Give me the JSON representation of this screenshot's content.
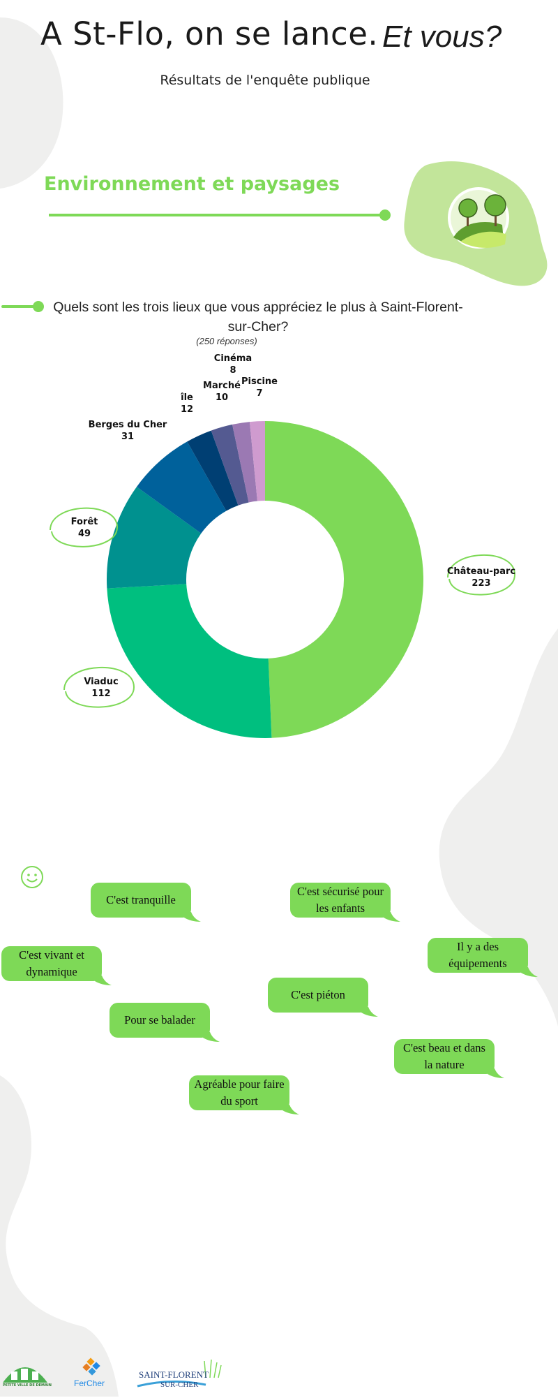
{
  "header": {
    "title": "A St-Flo, on se lance.",
    "title_italic": "Et vous?",
    "subtitle": "Résultats de l'enquête publique"
  },
  "section": {
    "title": "Environnement et paysages",
    "icon": "trees-landscape-icon"
  },
  "question": {
    "text": "Quels sont les trois lieux que vous appréciez le plus  à Saint-Florent-sur-Cher?",
    "responses": "(250 réponses)"
  },
  "chart_data": {
    "type": "pie",
    "variant": "donut",
    "categories": [
      "Château-parc",
      "Viaduc",
      "Forêt",
      "Berges du Cher",
      "île",
      "Marché",
      "Cinéma",
      "Piscine"
    ],
    "values": [
      223,
      112,
      49,
      31,
      12,
      10,
      8,
      7
    ],
    "colors": [
      "#7ed957",
      "#00bf7f",
      "#00918f",
      "#00619b",
      "#003f73",
      "#545a91",
      "#9b79b3",
      "#cf9bcf"
    ],
    "highlighted": [
      "Château-parc",
      "Viaduc",
      "Forêt"
    ]
  },
  "comments": {
    "icon": "smiley-icon",
    "items": [
      "C'est tranquille",
      "C'est sécurisé pour les enfants",
      "Il y a des équipements",
      "C'est vivant et dynamique",
      "C'est piéton",
      "Pour se balader",
      "C'est beau et dans la nature",
      "Agréable pour faire du sport"
    ]
  },
  "footer": {
    "logos": [
      {
        "name": "petite-ville-de-demain-logo",
        "text": "PETITE VILLE DE DEMAIN"
      },
      {
        "name": "fercher-logo",
        "text": "FerCher"
      },
      {
        "name": "saint-florent-sur-cher-logo",
        "text1": "SAINT-FLORENT",
        "text2": "SUR-CHER"
      }
    ]
  },
  "colors": {
    "accent": "#7ed957",
    "blob": "#efefee"
  }
}
